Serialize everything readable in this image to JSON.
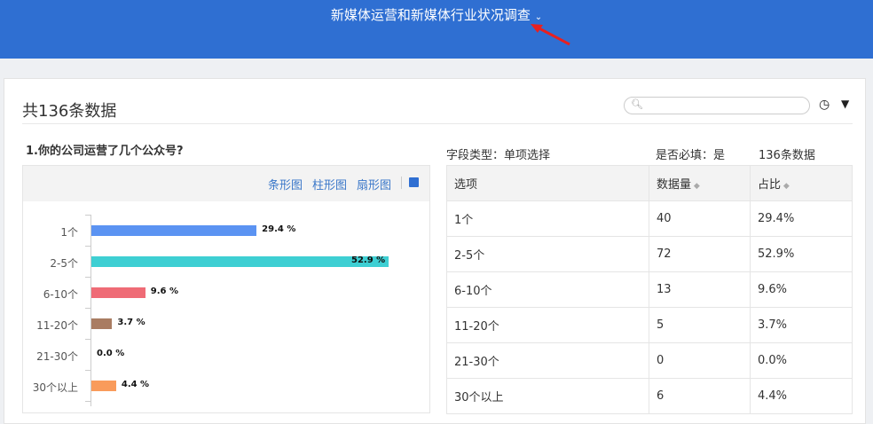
{
  "header": {
    "title": "新媒体运营和新媒体行业状况调查"
  },
  "toolbar": {
    "count_label": "共136条数据",
    "search_placeholder": ""
  },
  "question": {
    "title": "1.你的公司运营了几个公众号?",
    "chart_tabs": [
      "条形图",
      "柱形图",
      "扇形图"
    ]
  },
  "meta": {
    "field_type": "字段类型：单项选择",
    "required": "是否必填：是",
    "total": "136条数据"
  },
  "table": {
    "headers": [
      "选项",
      "数据量",
      "占比"
    ],
    "rows": [
      [
        "1个",
        "40",
        "29.4%"
      ],
      [
        "2-5个",
        "72",
        "52.9%"
      ],
      [
        "6-10个",
        "13",
        "9.6%"
      ],
      [
        "11-20个",
        "5",
        "3.7%"
      ],
      [
        "21-30个",
        "0",
        "0.0%"
      ],
      [
        "30个以上",
        "6",
        "4.4%"
      ]
    ]
  },
  "chart_data": {
    "type": "bar",
    "orientation": "horizontal",
    "categories": [
      "1个",
      "2-5个",
      "6-10个",
      "11-20个",
      "21-30个",
      "30个以上"
    ],
    "values": [
      29.4,
      52.9,
      9.6,
      3.7,
      0.0,
      4.4
    ],
    "data_labels": [
      "29.4 %",
      "52.9 %",
      "9.6 %",
      "3.7 %",
      "0.0 %",
      "4.4 %"
    ],
    "colors": [
      "#5b93f2",
      "#3ecfd3",
      "#ef6b76",
      "#a97c62",
      "#999999",
      "#f99b5b"
    ]
  }
}
